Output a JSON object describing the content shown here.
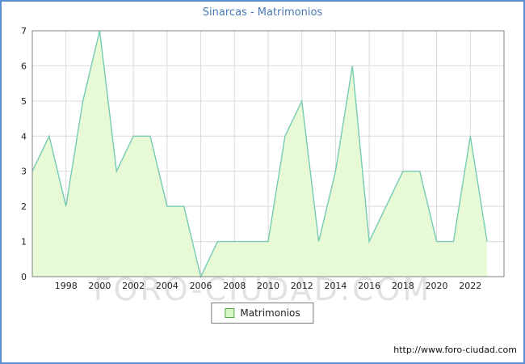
{
  "title": "Sinarcas - Matrimonios",
  "legend": {
    "label": "Matrimonios"
  },
  "watermark": "FORO-CIUDAD.COM",
  "footer": {
    "url": "http://www.foro-ciudad.com"
  },
  "colors": {
    "frame_border": "#5b8dd0",
    "title": "#4878b4",
    "plot_border": "#808080",
    "grid": "#d9d9d9",
    "line": "#76cbb4",
    "area_fill": "#e8f9d6",
    "tick_text": "#222222",
    "legend_swatch_fill": "#d8f7c4",
    "legend_swatch_border": "#59a84b"
  },
  "chart_data": {
    "type": "area",
    "title": "Sinarcas - Matrimonios",
    "xlabel": "",
    "ylabel": "",
    "x": [
      1996,
      1997,
      1998,
      1999,
      2000,
      2001,
      2002,
      2003,
      2004,
      2005,
      2006,
      2007,
      2008,
      2009,
      2010,
      2011,
      2012,
      2013,
      2014,
      2015,
      2016,
      2017,
      2018,
      2019,
      2020,
      2021,
      2022,
      2023
    ],
    "values": [
      3,
      4,
      2,
      5,
      7,
      3,
      4,
      4,
      2,
      2,
      0,
      1,
      1,
      1,
      1,
      4,
      5,
      1,
      3,
      6,
      1,
      2,
      3,
      3,
      1,
      1,
      4,
      1
    ],
    "series_name": "Matrimonios",
    "xlim": [
      1996,
      2024
    ],
    "ylim": [
      0,
      7
    ],
    "xticks": [
      1998,
      2000,
      2002,
      2004,
      2006,
      2008,
      2010,
      2012,
      2014,
      2016,
      2018,
      2020,
      2022
    ],
    "yticks": [
      0,
      1,
      2,
      3,
      4,
      5,
      6,
      7
    ],
    "grid": true,
    "legend_position": "bottom"
  }
}
